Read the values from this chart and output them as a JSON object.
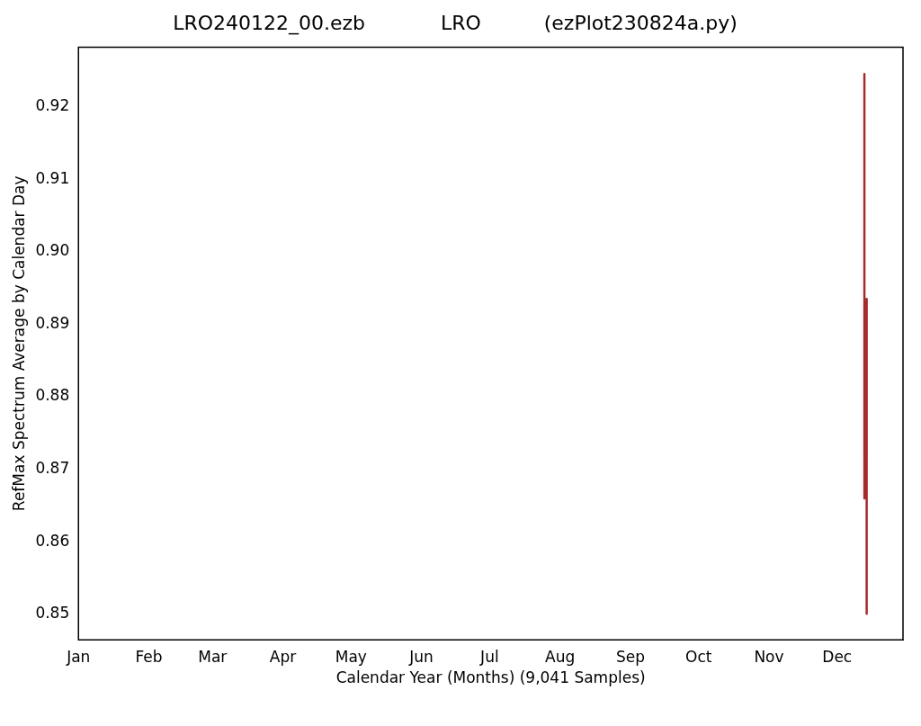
{
  "chart_data": {
    "type": "line",
    "title": "LRO240122_00.ezb            LRO          (ezPlot230824a.py)",
    "xlabel": "Calendar Year (Months) (9,041 Samples)",
    "ylabel": "RefMax Spectrum Average by Calendar Day",
    "series": [
      {
        "color": "#a52a2a",
        "x": [
          "--12-13",
          "--12-13",
          "--12-14",
          "--12-14"
        ],
        "values": [
          0.9245,
          0.866,
          0.8935,
          0.8501
        ]
      }
    ],
    "xlim": [
      "--01-01",
      "--12-30"
    ],
    "xticks": [
      {
        "value": "--01-01",
        "label": "Jan"
      },
      {
        "value": "--02-01",
        "label": "Feb"
      },
      {
        "value": "--03-01",
        "label": "Mar"
      },
      {
        "value": "--04-01",
        "label": "Apr"
      },
      {
        "value": "--05-01",
        "label": "May"
      },
      {
        "value": "--06-01",
        "label": "Jun"
      },
      {
        "value": "--07-01",
        "label": "Jul"
      },
      {
        "value": "--08-01",
        "label": "Aug"
      },
      {
        "value": "--09-01",
        "label": "Sep"
      },
      {
        "value": "--10-01",
        "label": "Oct"
      },
      {
        "value": "--11-01",
        "label": "Nov"
      },
      {
        "value": "--12-01",
        "label": "Dec"
      }
    ],
    "ylim": [
      0.8465,
      0.9282
    ],
    "yticks": [
      {
        "value": 0.85,
        "label": "0.85"
      },
      0.86,
      0.87,
      0.88,
      0.89,
      {
        "value": 0.9,
        "label": "0.90"
      },
      0.91,
      0.92
    ],
    "grid": false,
    "legend": false,
    "marker": "none",
    "line_style": "solid"
  }
}
